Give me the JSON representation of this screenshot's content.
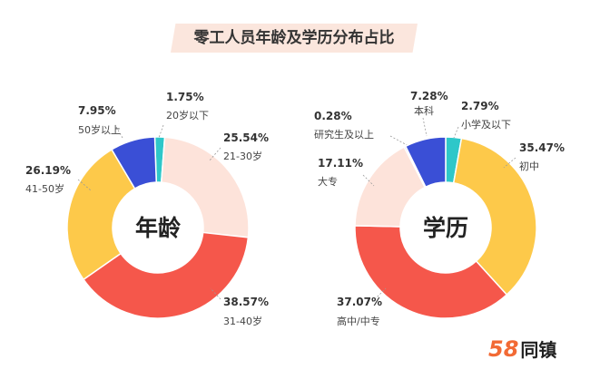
{
  "title": "零工人员年龄及学历分布占比",
  "brand": {
    "number": "58",
    "name": "同镇"
  },
  "chart_data": [
    {
      "type": "donut",
      "center_label": "年龄",
      "slices": [
        {
          "label": "20岁以下",
          "value": 1.75,
          "display": "1.75%",
          "color": "#2ec7c9"
        },
        {
          "label": "21-30岁",
          "value": 25.54,
          "display": "25.54%",
          "color": "#fde3da"
        },
        {
          "label": "31-40岁",
          "value": 38.57,
          "display": "38.57%",
          "color": "#f5574b"
        },
        {
          "label": "41-50岁",
          "value": 26.19,
          "display": "26.19%",
          "color": "#fdc94a"
        },
        {
          "label": "50岁以上",
          "value": 7.95,
          "display": "7.95%",
          "color": "#3a4fd6"
        }
      ]
    },
    {
      "type": "donut",
      "center_label": "学历",
      "slices": [
        {
          "label": "小学及以下",
          "value": 2.79,
          "display": "2.79%",
          "color": "#2ec7c9"
        },
        {
          "label": "初中",
          "value": 35.47,
          "display": "35.47%",
          "color": "#fdc94a"
        },
        {
          "label": "高中/中专",
          "value": 37.07,
          "display": "37.07%",
          "color": "#f5574b"
        },
        {
          "label": "大专",
          "value": 17.11,
          "display": "17.11%",
          "color": "#fde3da"
        },
        {
          "label": "研究生及以上",
          "value": 0.28,
          "display": "0.28%",
          "color": "#8a8fd6"
        },
        {
          "label": "本科",
          "value": 7.28,
          "display": "7.28%",
          "color": "#3a4fd6"
        }
      ]
    }
  ]
}
